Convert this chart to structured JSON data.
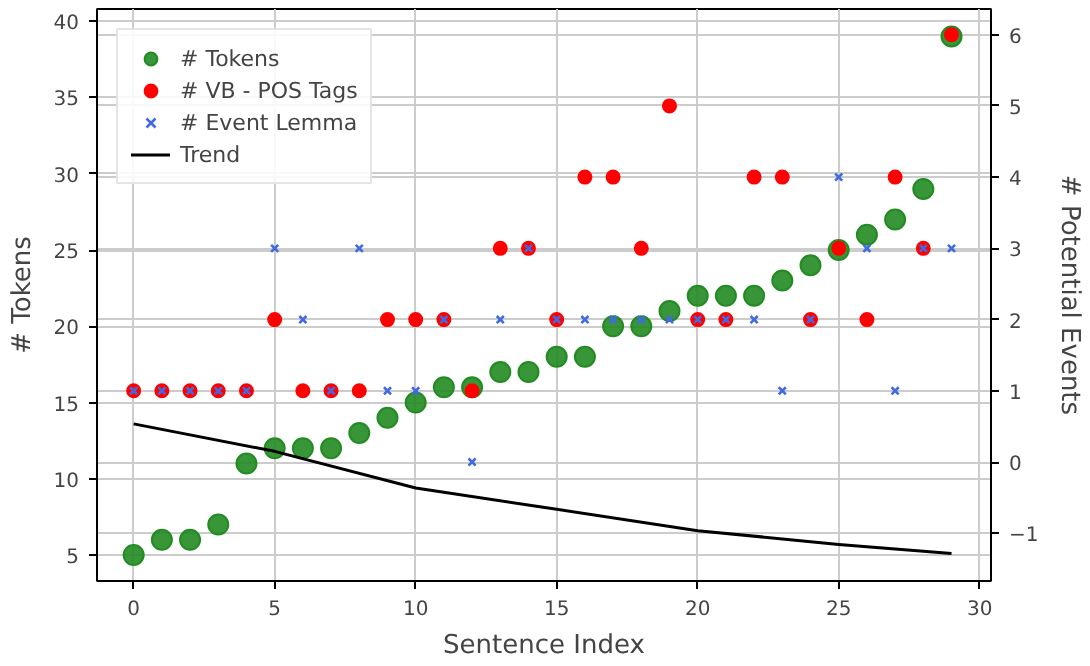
{
  "chart_data": {
    "type": "scatter",
    "xlabel": "Sentence Index",
    "ylabel": "# Tokens",
    "y2label": "# Potential Events",
    "x": [
      0,
      1,
      2,
      3,
      4,
      5,
      6,
      7,
      8,
      9,
      10,
      11,
      12,
      13,
      14,
      15,
      16,
      17,
      18,
      19,
      20,
      21,
      22,
      23,
      24,
      25,
      26,
      27,
      28,
      29
    ],
    "xlim": [
      -1.3,
      30.4
    ],
    "xticks": [
      0,
      5,
      10,
      15,
      20,
      25,
      30
    ],
    "ylim": [
      3.3,
      40.8
    ],
    "yticks": [
      5,
      10,
      15,
      20,
      25,
      30,
      35,
      40
    ],
    "y2lim": [
      -1.67,
      6.36
    ],
    "y2ticks": [
      {
        "value": -1,
        "label": "−1"
      },
      0,
      1,
      2,
      3,
      4,
      5,
      6
    ],
    "grid": true,
    "legend": "top left",
    "series": [
      {
        "name": "# Tokens",
        "marker": "circle",
        "color": "#228b22",
        "values": [
          5,
          6,
          6,
          7,
          11,
          12,
          12,
          12,
          13,
          14,
          15,
          16,
          16,
          17,
          17,
          18,
          18,
          20,
          20,
          21,
          22,
          22,
          22,
          23,
          24,
          25,
          26,
          27,
          29,
          39
        ]
      },
      {
        "name": "# VB - POS Tags",
        "marker": "circle",
        "color": "#ff0000",
        "axis": "y2",
        "values": [
          1,
          1,
          1,
          1,
          1,
          2,
          1,
          1,
          1,
          2,
          2,
          2,
          1,
          3,
          3,
          2,
          4,
          4,
          3,
          5,
          2,
          2,
          4,
          4,
          2,
          3,
          2,
          4,
          3,
          6
        ]
      },
      {
        "name": "# Event Lemma",
        "marker": "cross",
        "color": "#4169e1",
        "axis": "y2",
        "values": [
          1,
          1,
          1,
          1,
          1,
          3,
          2,
          1,
          3,
          1,
          1,
          2,
          0,
          2,
          3,
          2,
          2,
          2,
          2,
          2,
          2,
          2,
          2,
          1,
          2,
          4,
          3,
          1,
          3,
          3
        ]
      },
      {
        "name": "Trend",
        "type": "line",
        "color": "#000000",
        "x": [
          0,
          5,
          10,
          15,
          20,
          25,
          29
        ],
        "values": [
          13.6,
          11.8,
          9.4,
          8.0,
          6.6,
          5.7,
          5.1
        ]
      }
    ]
  }
}
